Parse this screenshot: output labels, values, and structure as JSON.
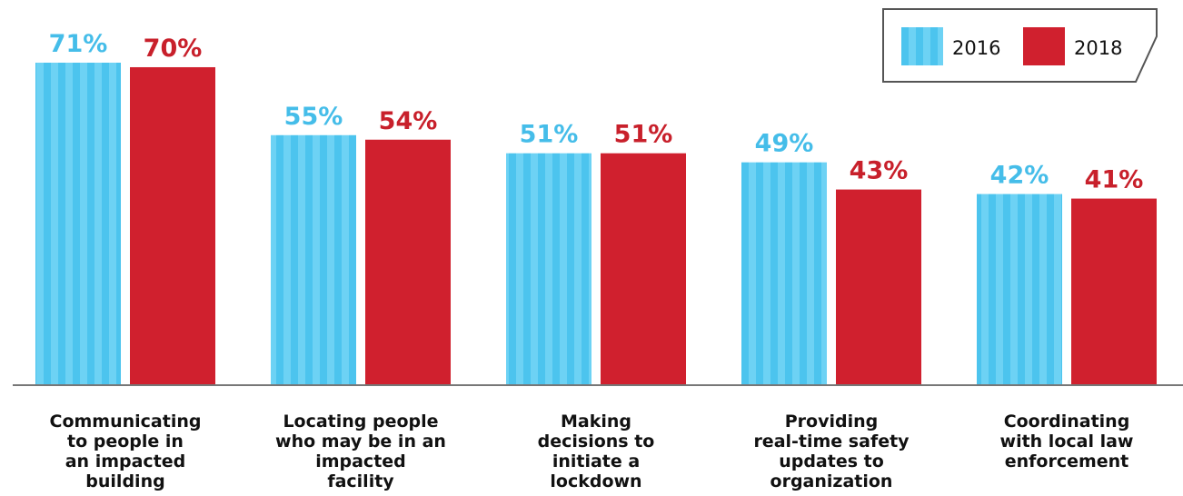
{
  "chart_data": {
    "type": "bar",
    "categories": [
      [
        "Communicating",
        "to people in",
        "an impacted",
        "building"
      ],
      [
        "Locating people",
        "who may be in an",
        "impacted",
        "facility"
      ],
      [
        "Making",
        "decisions to",
        "initiate a",
        "lockdown"
      ],
      [
        "Providing",
        "real-time safety",
        "updates to",
        "organization"
      ],
      [
        "Coordinating",
        "with local law",
        "enforcement"
      ]
    ],
    "series": [
      {
        "name": "2016",
        "values": [
          71,
          55,
          51,
          49,
          42
        ],
        "labels": [
          "71%",
          "55%",
          "51%",
          "49%",
          "42%"
        ],
        "color": "#4cc4ee",
        "stripe_color": "#6dd2f4",
        "label_color": "#45bde9"
      },
      {
        "name": "2018",
        "values": [
          70,
          54,
          51,
          43,
          41
        ],
        "labels": [
          "70%",
          "54%",
          "51%",
          "43%",
          "41%"
        ],
        "color": "#d0202e",
        "label_color": "#c8202b"
      }
    ],
    "ylim": [
      0,
      71
    ],
    "grid": false,
    "legend_position": "top-right",
    "title": "",
    "xlabel": "",
    "ylabel": ""
  }
}
